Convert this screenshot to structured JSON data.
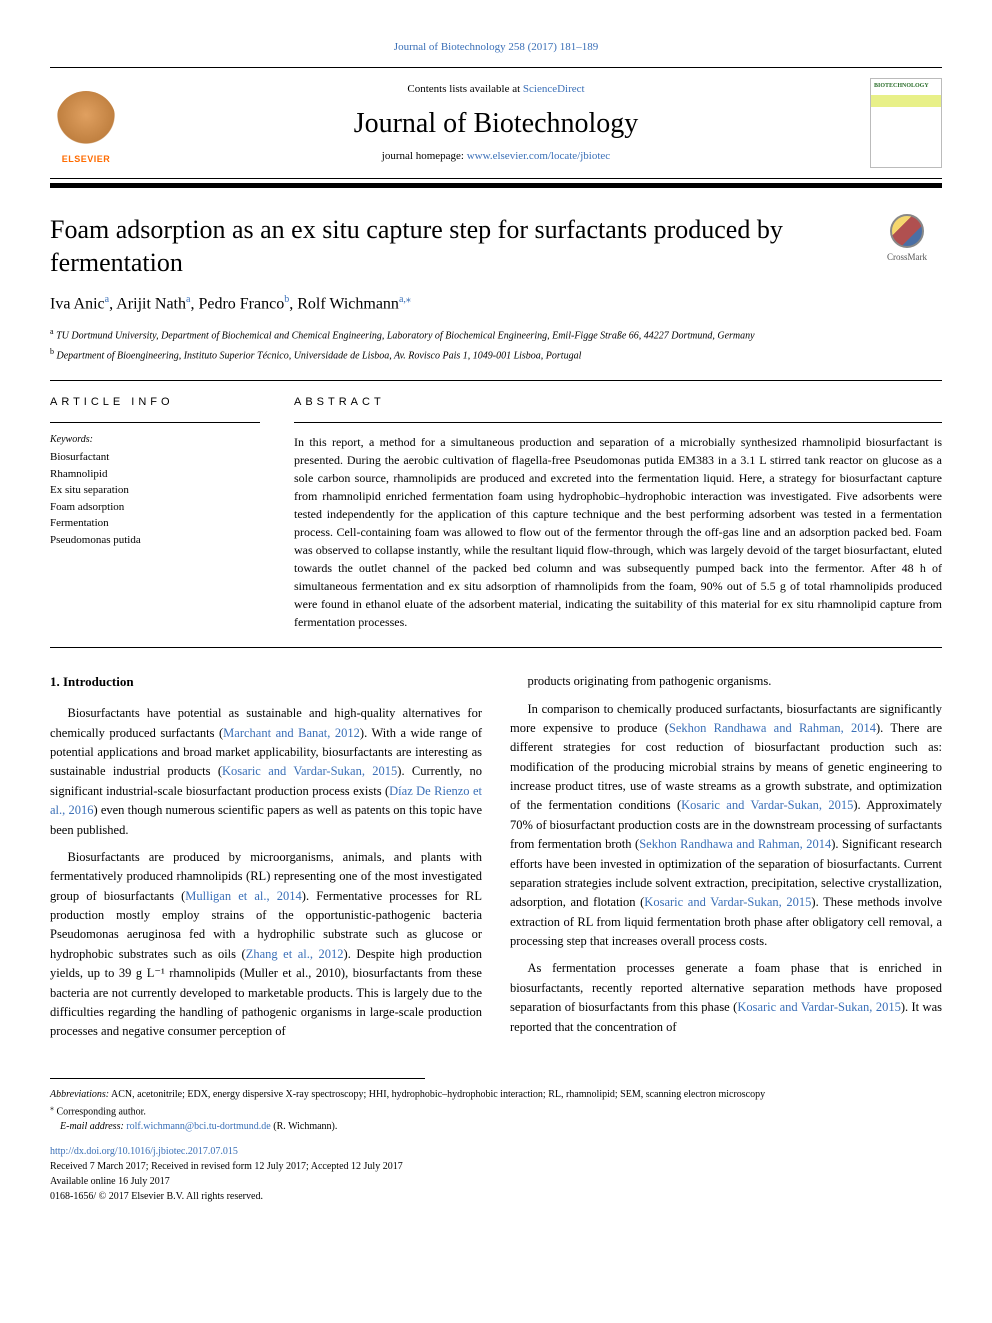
{
  "top_citation": "Journal of Biotechnology 258 (2017) 181–189",
  "header": {
    "contents_prefix": "Contents lists available at ",
    "contents_link": "ScienceDirect",
    "journal_name": "Journal of Biotechnology",
    "homepage_prefix": "journal homepage: ",
    "homepage_url": "www.elsevier.com/locate/jbiotec",
    "publisher": "ELSEVIER",
    "cover_label": "BIOTECHNOLOGY"
  },
  "title": "Foam adsorption as an ex situ capture step for surfactants produced by fermentation",
  "crossmark": "CrossMark",
  "authors_html": "Iva Anic<sup>a</sup>, Arijit Nath<sup>a</sup>, Pedro Franco<sup>b</sup>, Rolf Wichmann<sup>a,</sup>*",
  "authors": [
    {
      "name": "Iva Anic",
      "aff": "a"
    },
    {
      "name": "Arijit Nath",
      "aff": "a"
    },
    {
      "name": "Pedro Franco",
      "aff": "b"
    },
    {
      "name": "Rolf Wichmann",
      "aff": "a,",
      "corr": true
    }
  ],
  "affiliations": {
    "a": "TU Dortmund University, Department of Biochemical and Chemical Engineering, Laboratory of Biochemical Engineering, Emil-Figge Straße 66, 44227 Dortmund, Germany",
    "b": "Department of Bioengineering, Instituto Superior Técnico, Universidade de Lisboa, Av. Rovisco Pais 1, 1049-001 Lisboa, Portugal"
  },
  "info_label": "ARTICLE INFO",
  "abstract_label": "ABSTRACT",
  "keywords_label": "Keywords:",
  "keywords": [
    "Biosurfactant",
    "Rhamnolipid",
    "Ex situ separation",
    "Foam adsorption",
    "Fermentation",
    "Pseudomonas putida"
  ],
  "abstract": "In this report, a method for a simultaneous production and separation of a microbially synthesized rhamnolipid biosurfactant is presented. During the aerobic cultivation of flagella-free Pseudomonas putida EM383 in a 3.1 L stirred tank reactor on glucose as a sole carbon source, rhamnolipids are produced and excreted into the fermentation liquid. Here, a strategy for biosurfactant capture from rhamnolipid enriched fermentation foam using hydrophobic–hydrophobic interaction was investigated. Five adsorbents were tested independently for the application of this capture technique and the best performing adsorbent was tested in a fermentation process. Cell-containing foam was allowed to flow out of the fermentor through the off-gas line and an adsorption packed bed. Foam was observed to collapse instantly, while the resultant liquid flow-through, which was largely devoid of the target biosurfactant, eluted towards the outlet channel of the packed bed column and was subsequently pumped back into the fermentor. After 48 h of simultaneous fermentation and ex situ adsorption of rhamnolipids from the foam, 90% out of 5.5 g of total rhamnolipids produced were found in ethanol eluate of the adsorbent material, indicating the suitability of this material for ex situ rhamnolipid capture from fermentation processes.",
  "intro_heading": "1. Introduction",
  "body": {
    "left": [
      "Biosurfactants have potential as sustainable and high-quality alternatives for chemically produced surfactants (|Marchant and Banat, 2012|). With a wide range of potential applications and broad market applicability, biosurfactants are interesting as sustainable industrial products (|Kosaric and Vardar-Sukan, 2015|). Currently, no significant industrial-scale biosurfactant production process exists (|Díaz De Rienzo et al., 2016|) even though numerous scientific papers as well as patents on this topic have been published.",
      "Biosurfactants are produced by microorganisms, animals, and plants with fermentatively produced rhamnolipids (RL) representing one of the most investigated group of biosurfactants (|Mulligan et al., 2014|). Fermentative processes for RL production mostly employ strains of the opportunistic-pathogenic bacteria Pseudomonas aeruginosa fed with a hydrophilic substrate such as glucose or hydrophobic substrates such as oils (|Zhang et al., 2012|). Despite high production yields, up to 39 g L⁻¹ rhamnolipids (Muller et al., 2010), biosurfactants from these bacteria are not currently developed to marketable products. This is largely due to the difficulties regarding the handling of pathogenic organisms in large-scale production processes and negative consumer perception of"
    ],
    "right": [
      "products originating from pathogenic organisms.",
      "In comparison to chemically produced surfactants, biosurfactants are significantly more expensive to produce (|Sekhon Randhawa and Rahman, 2014|). There are different strategies for cost reduction of biosurfactant production such as: modification of the producing microbial strains by means of genetic engineering to increase product titres, use of waste streams as a growth substrate, and optimization of the fermentation conditions (|Kosaric and Vardar-Sukan, 2015|). Approximately 70% of biosurfactant production costs are in the downstream processing of surfactants from fermentation broth (|Sekhon Randhawa and Rahman, 2014|). Significant research efforts have been invested in optimization of the separation of biosurfactants. Current separation strategies include solvent extraction, precipitation, selective crystallization, adsorption, and flotation (|Kosaric and Vardar-Sukan, 2015|). These methods involve extraction of RL from liquid fermentation broth phase after obligatory cell removal, a processing step that increases overall process costs.",
      "As fermentation processes generate a foam phase that is enriched in biosurfactants, recently reported alternative separation methods have proposed separation of biosurfactants from this phase (|Kosaric and Vardar-Sukan, 2015|). It was reported that the concentration of"
    ]
  },
  "footer": {
    "abbrev_label": "Abbreviations:",
    "abbrev": " ACN, acetonitrile; EDX, energy dispersive X-ray spectroscopy; HHI, hydrophobic–hydrophobic interaction; RL, rhamnolipid; SEM, scanning electron microscopy",
    "corr": "Corresponding author.",
    "email_label": "E-mail address:",
    "email": "rolf.wichmann@bci.tu-dortmund.de",
    "email_who": " (R. Wichmann).",
    "doi": "http://dx.doi.org/10.1016/j.jbiotec.2017.07.015",
    "received": "Received 7 March 2017; Received in revised form 12 July 2017; Accepted 12 July 2017",
    "available": "Available online 16 July 2017",
    "copyright": "0168-1656/ © 2017 Elsevier B.V. All rights reserved."
  },
  "colors": {
    "link": "#3a6fb7",
    "elsevier": "#ff6b00"
  }
}
